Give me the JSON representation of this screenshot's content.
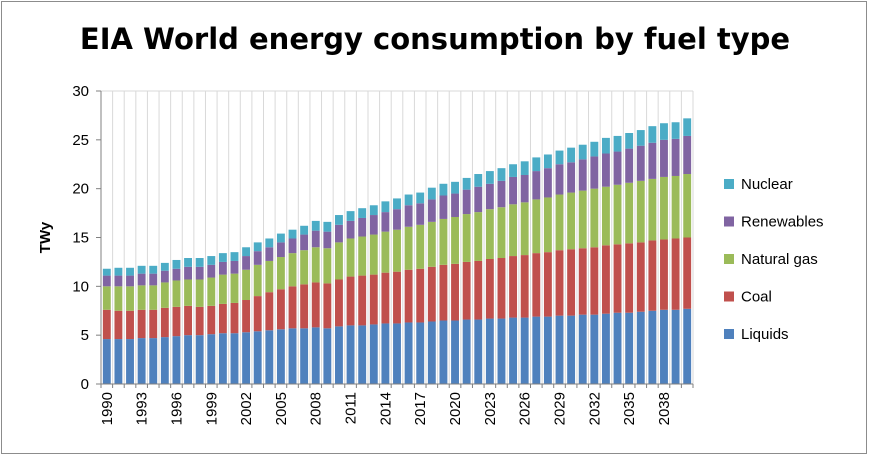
{
  "chart_data": {
    "type": "bar",
    "stacked": true,
    "title": "EIA World energy consumption by fuel type",
    "xlabel": "",
    "ylabel": "TWy",
    "ylim": [
      0,
      30
    ],
    "yticks": [
      0,
      5,
      10,
      15,
      20,
      25,
      30
    ],
    "grid": {
      "vertical": true,
      "horizontal": false
    },
    "legend_position": "right",
    "x_tick_labels": [
      "1990",
      "1993",
      "1996",
      "1999",
      "2002",
      "2005",
      "2008",
      "2011",
      "2014",
      "2017",
      "2020",
      "2023",
      "2026",
      "2029",
      "2032",
      "2035",
      "2038"
    ],
    "categories": [
      "1990",
      "1991",
      "1992",
      "1993",
      "1994",
      "1995",
      "1996",
      "1997",
      "1998",
      "1999",
      "2000",
      "2001",
      "2002",
      "2003",
      "2004",
      "2005",
      "2006",
      "2007",
      "2008",
      "2009",
      "2010",
      "2011",
      "2012",
      "2013",
      "2014",
      "2015",
      "2016",
      "2017",
      "2018",
      "2019",
      "2020",
      "2021",
      "2022",
      "2023",
      "2024",
      "2025",
      "2026",
      "2027",
      "2028",
      "2029",
      "2030",
      "2031",
      "2032",
      "2033",
      "2034",
      "2035",
      "2036",
      "2037",
      "2038",
      "2039",
      "2040"
    ],
    "series": [
      {
        "name": "Liquids",
        "color": "#4f81bd",
        "values": [
          4.6,
          4.6,
          4.6,
          4.7,
          4.7,
          4.8,
          4.9,
          5.0,
          5.0,
          5.1,
          5.2,
          5.2,
          5.3,
          5.4,
          5.5,
          5.6,
          5.7,
          5.7,
          5.8,
          5.7,
          5.9,
          6.0,
          6.0,
          6.1,
          6.2,
          6.2,
          6.3,
          6.3,
          6.4,
          6.5,
          6.5,
          6.6,
          6.6,
          6.7,
          6.7,
          6.8,
          6.8,
          6.9,
          6.9,
          7.0,
          7.0,
          7.1,
          7.1,
          7.2,
          7.3,
          7.3,
          7.4,
          7.5,
          7.6,
          7.6,
          7.7
        ]
      },
      {
        "name": "Coal",
        "color": "#c0504d",
        "values": [
          3.0,
          2.9,
          2.9,
          2.9,
          2.9,
          3.0,
          3.0,
          3.0,
          2.9,
          2.9,
          3.0,
          3.1,
          3.3,
          3.6,
          3.9,
          4.1,
          4.3,
          4.5,
          4.6,
          4.6,
          4.8,
          5.0,
          5.1,
          5.1,
          5.2,
          5.3,
          5.4,
          5.5,
          5.6,
          5.7,
          5.8,
          5.9,
          6.0,
          6.1,
          6.2,
          6.3,
          6.4,
          6.5,
          6.6,
          6.7,
          6.8,
          6.8,
          6.9,
          7.0,
          7.0,
          7.1,
          7.1,
          7.2,
          7.2,
          7.3,
          7.3
        ]
      },
      {
        "name": "Natural gas",
        "color": "#9bbb59",
        "values": [
          2.4,
          2.5,
          2.5,
          2.5,
          2.5,
          2.6,
          2.7,
          2.7,
          2.8,
          2.9,
          3.0,
          3.0,
          3.1,
          3.2,
          3.2,
          3.3,
          3.4,
          3.5,
          3.6,
          3.6,
          3.8,
          3.9,
          4.0,
          4.1,
          4.2,
          4.3,
          4.4,
          4.5,
          4.6,
          4.7,
          4.8,
          4.9,
          5.0,
          5.1,
          5.2,
          5.3,
          5.4,
          5.5,
          5.6,
          5.7,
          5.8,
          5.9,
          6.0,
          6.0,
          6.1,
          6.2,
          6.3,
          6.3,
          6.4,
          6.4,
          6.5
        ]
      },
      {
        "name": "Renewables",
        "color": "#8064a2",
        "values": [
          1.1,
          1.1,
          1.1,
          1.2,
          1.2,
          1.2,
          1.2,
          1.3,
          1.3,
          1.3,
          1.3,
          1.3,
          1.4,
          1.4,
          1.4,
          1.5,
          1.5,
          1.6,
          1.7,
          1.7,
          1.8,
          1.8,
          1.9,
          2.0,
          2.0,
          2.1,
          2.2,
          2.2,
          2.3,
          2.4,
          2.4,
          2.5,
          2.6,
          2.6,
          2.7,
          2.8,
          2.8,
          2.9,
          3.0,
          3.1,
          3.1,
          3.2,
          3.3,
          3.4,
          3.4,
          3.5,
          3.6,
          3.7,
          3.8,
          3.8,
          3.9
        ]
      },
      {
        "name": "Nuclear",
        "color": "#4bacc6",
        "values": [
          0.7,
          0.8,
          0.8,
          0.8,
          0.8,
          0.8,
          0.9,
          0.9,
          0.9,
          0.9,
          0.9,
          0.9,
          0.9,
          0.9,
          0.9,
          0.9,
          0.9,
          0.9,
          1.0,
          1.0,
          1.0,
          1.0,
          1.0,
          1.0,
          1.1,
          1.1,
          1.1,
          1.1,
          1.2,
          1.2,
          1.2,
          1.2,
          1.3,
          1.3,
          1.3,
          1.3,
          1.4,
          1.4,
          1.4,
          1.4,
          1.5,
          1.5,
          1.5,
          1.6,
          1.6,
          1.6,
          1.6,
          1.7,
          1.7,
          1.7,
          1.8
        ]
      }
    ]
  }
}
